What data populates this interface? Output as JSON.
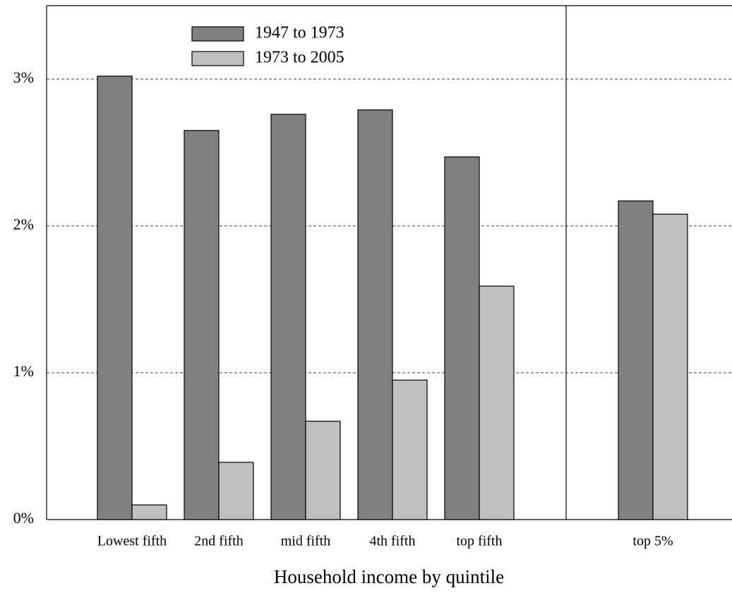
{
  "chart_data": {
    "type": "bar",
    "x_label": "Household income by quintile",
    "categories": [
      "Lowest fifth",
      "2nd fifth",
      "mid fifth",
      "4th fifth",
      "top fifth",
      null,
      "top 5%"
    ],
    "series": [
      {
        "name": "1947 to 1973",
        "color": "#808080",
        "values": [
          3.02,
          2.65,
          2.76,
          2.79,
          2.47,
          0,
          2.17
        ]
      },
      {
        "name": "1973 to 2005",
        "color": "#c0c0c0",
        "values": [
          0.1,
          0.39,
          0.67,
          0.95,
          1.59,
          0,
          2.08
        ]
      }
    ],
    "ylim": [
      0,
      3.5
    ],
    "yticks": [
      {
        "value": 0,
        "label": "0%"
      },
      {
        "value": 1,
        "label": "1%"
      },
      {
        "value": 2,
        "label": "2%"
      },
      {
        "value": 3,
        "label": "3%"
      }
    ],
    "grid": true,
    "legend": "upper left"
  }
}
